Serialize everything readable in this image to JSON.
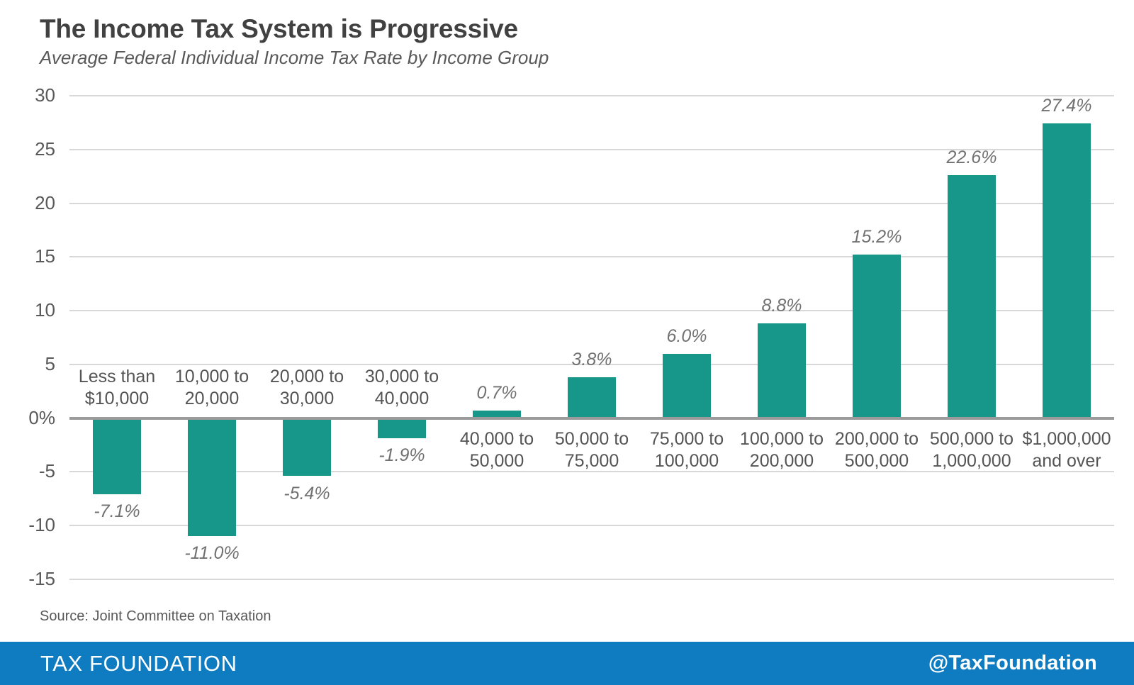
{
  "chart_data": {
    "type": "bar",
    "title": "The Income Tax System is Progressive",
    "subtitle": "Average Federal Individual Income Tax Rate by Income Group",
    "categories": [
      [
        "Less than",
        "$10,000"
      ],
      [
        "10,000 to",
        "20,000"
      ],
      [
        "20,000 to",
        "30,000"
      ],
      [
        "30,000 to",
        "40,000"
      ],
      [
        "40,000 to",
        "50,000"
      ],
      [
        "50,000 to",
        "75,000"
      ],
      [
        "75,000 to",
        "100,000"
      ],
      [
        "100,000 to",
        "200,000"
      ],
      [
        "200,000 to",
        "500,000"
      ],
      [
        "500,000 to",
        "1,000,000"
      ],
      [
        "$1,000,000",
        "and over"
      ]
    ],
    "values": [
      -7.1,
      -11.0,
      -5.4,
      -1.9,
      0.7,
      3.8,
      6.0,
      8.8,
      15.2,
      22.6,
      27.4
    ],
    "value_labels": [
      "-7.1%",
      "-11.0%",
      "-5.4%",
      "-1.9%",
      "0.7%",
      "3.8%",
      "6.0%",
      "8.8%",
      "15.2%",
      "22.6%",
      "27.4%"
    ],
    "y_ticks": [
      {
        "label": "30",
        "value": 30
      },
      {
        "label": "25",
        "value": 25
      },
      {
        "label": "20",
        "value": 20
      },
      {
        "label": "15",
        "value": 15
      },
      {
        "label": "10",
        "value": 10
      },
      {
        "label": "5",
        "value": 5
      },
      {
        "label": "0%",
        "value": 0
      },
      {
        "label": "-5",
        "value": -5
      },
      {
        "label": "-10",
        "value": -10
      },
      {
        "label": "-15",
        "value": -15
      }
    ],
    "ylim": [
      -15,
      30
    ],
    "xlabel": "",
    "ylabel": "",
    "grid": true,
    "legend": "none",
    "bar_color": "#17978a",
    "source": "Source: Joint Committee on Taxation"
  },
  "footer": {
    "brand": "TAX FOUNDATION",
    "handle": "@TaxFoundation"
  },
  "colors": {
    "bar": "#17978a",
    "grid": "#d8d8d8",
    "zero_line": "#9b9b9b",
    "title_text": "#414141",
    "label_text": "#555555",
    "value_text": "#717171",
    "tick_text": "#595959",
    "footer_bg": "#0f7cc1",
    "footer_text": "#ffffff"
  }
}
